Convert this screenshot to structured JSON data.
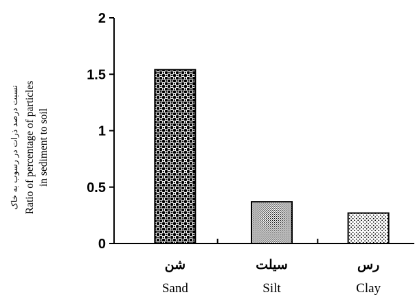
{
  "chart_data": {
    "type": "bar",
    "categories": [
      "شن",
      "سیلت",
      "رس"
    ],
    "categories_en": [
      "Sand",
      "Silt",
      "Clay"
    ],
    "values": [
      1.54,
      0.37,
      0.27
    ],
    "ylabel_fa": "نسبت درصد ذرات در رسوب به خاک",
    "ylabel_en_line1": "Ratio of percentage of particles",
    "ylabel_en_line2": "in sediment to soil",
    "ylim": [
      0,
      2
    ],
    "yticks": [
      0,
      0.5,
      1,
      1.5,
      2
    ],
    "ytick_labels": [
      "0",
      "0.5",
      "1",
      "1.5",
      "2"
    ],
    "bar_patterns": [
      "checker-dots",
      "fine-stipple",
      "sparse-dots"
    ],
    "grid": false
  }
}
